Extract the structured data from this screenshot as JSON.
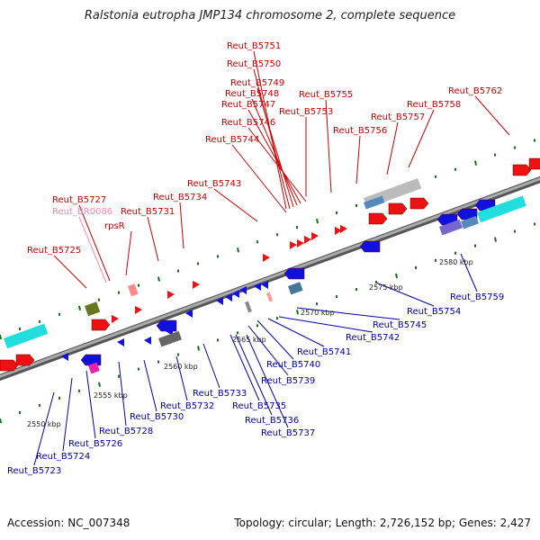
{
  "title": "Ralstonia eutropha JMP134 chromosome 2, complete sequence",
  "footer": {
    "accession": "Accession: NC_007348",
    "summary": "Topology: circular; Length: 2,726,152 bp; Genes: 2,427"
  },
  "scale_labels": [
    "2550 kbp",
    "2555 kbp",
    "2560 kbp",
    "2565 kbp",
    "2570 kbp",
    "2575 kbp",
    "2580 kbp"
  ],
  "top_labels": [
    {
      "text": "Reut_B5751",
      "color": "#cc0000"
    },
    {
      "text": "Reut_B5750",
      "color": "#cc0000"
    },
    {
      "text": "Reut_B5749",
      "color": "#cc0000"
    },
    {
      "text": "Reut_B5748",
      "color": "#cc0000"
    },
    {
      "text": "Reut_B5747",
      "color": "#cc0000"
    },
    {
      "text": "Reut_B5746",
      "color": "#cc0000"
    },
    {
      "text": "Reut_B5744",
      "color": "#cc0000"
    },
    {
      "text": "Reut_B5743",
      "color": "#cc0000"
    },
    {
      "text": "Reut_B5734",
      "color": "#cc0000"
    },
    {
      "text": "Reut_B5731",
      "color": "#cc0000"
    },
    {
      "text": "Reut_B5727",
      "color": "#cc0000"
    },
    {
      "text": "Reut_BR0086",
      "color": "#ff88aa"
    },
    {
      "text": "rpsR",
      "color": "#cc0000"
    },
    {
      "text": "Reut_B5725",
      "color": "#cc0000"
    },
    {
      "text": "Reut_B5755",
      "color": "#cc0000"
    },
    {
      "text": "Reut_B5753",
      "color": "#cc0000"
    },
    {
      "text": "Reut_B5756",
      "color": "#cc0000"
    },
    {
      "text": "Reut_B5757",
      "color": "#cc0000"
    },
    {
      "text": "Reut_B5758",
      "color": "#cc0000"
    },
    {
      "text": "Reut_B5762",
      "color": "#cc0000"
    }
  ],
  "bottom_labels": [
    {
      "text": "Reut_B5759",
      "color": "#0000aa"
    },
    {
      "text": "Reut_B5754",
      "color": "#0000aa"
    },
    {
      "text": "Reut_B5745",
      "color": "#0000aa"
    },
    {
      "text": "Reut_B5742",
      "color": "#0000aa"
    },
    {
      "text": "Reut_B5741",
      "color": "#0000aa"
    },
    {
      "text": "Reut_B5740",
      "color": "#0000aa"
    },
    {
      "text": "Reut_B5739",
      "color": "#0000aa"
    },
    {
      "text": "Reut_B5733",
      "color": "#0000aa"
    },
    {
      "text": "Reut_B5735",
      "color": "#0000aa"
    },
    {
      "text": "Reut_B5736",
      "color": "#0000aa"
    },
    {
      "text": "Reut_B5737",
      "color": "#0000aa"
    },
    {
      "text": "Reut_B5732",
      "color": "#0000aa"
    },
    {
      "text": "Reut_B5730",
      "color": "#0000aa"
    },
    {
      "text": "Reut_B5728",
      "color": "#0000aa"
    },
    {
      "text": "Reut_B5726",
      "color": "#0000aa"
    },
    {
      "text": "Reut_B5724",
      "color": "#0000aa"
    },
    {
      "text": "Reut_B5723",
      "color": "#0000aa"
    }
  ],
  "colors": {
    "forward": "#ee1111",
    "reverse": "#1111dd",
    "backbone": "#888888",
    "tick": "#117711"
  }
}
